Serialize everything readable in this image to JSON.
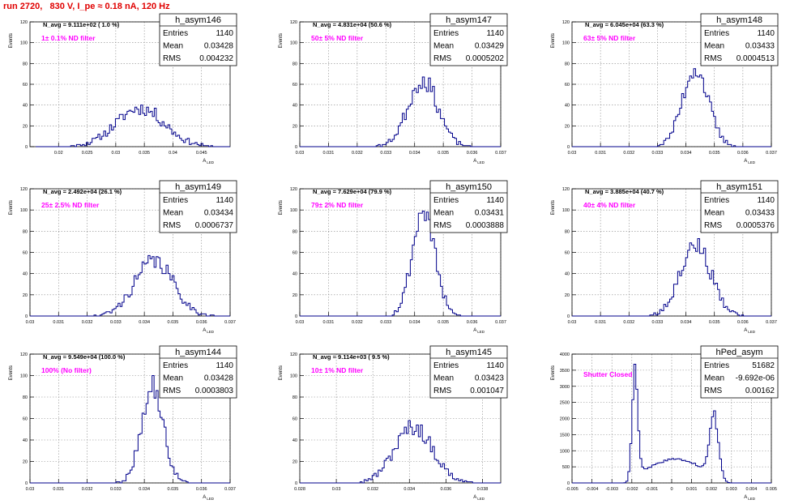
{
  "page_title": "run 2720,   830 V, I_pe ≈ 0.18 nA, 120 Hz",
  "colors": {
    "hist": "#00008b",
    "title": "#e00000",
    "filter_label": "#ff00ff"
  },
  "stat_labels": {
    "entries": "Entries",
    "mean": "Mean",
    "rms": "RMS"
  },
  "chart_data": [
    {
      "type": "histogram",
      "name": "h_asym146",
      "ylabel": "Events",
      "xlabel": "A_LED",
      "xlim": [
        0.015,
        0.05
      ],
      "ylim": [
        0,
        120
      ],
      "xticks": [
        "0.02",
        "0.025",
        "0.03",
        "0.035",
        "0.04",
        "0.045"
      ],
      "xtick_values": [
        0.02,
        0.025,
        0.03,
        0.035,
        0.04,
        0.045
      ],
      "yticks": [
        0,
        20,
        40,
        60,
        80,
        100,
        120
      ],
      "stats": {
        "entries": "1140",
        "mean": "0.03428",
        "rms": "0.004232"
      },
      "n_avg": "N_avg = 9.111e+02 ( 1.0 %)",
      "filter": "1± 0.1% ND filter",
      "dist": {
        "type": "gauss",
        "mean": 0.03428,
        "sigma": 0.004232,
        "range": [
          0.016,
          0.05
        ],
        "peak": 37,
        "seed": 11
      },
      "grid": true
    },
    {
      "type": "histogram",
      "name": "h_asym147",
      "ylabel": "Events",
      "xlabel": "A_LED",
      "xlim": [
        0.03,
        0.037
      ],
      "ylim": [
        0,
        120
      ],
      "xticks": [
        "0.03",
        "0.031",
        "0.032",
        "0.033",
        "0.034",
        "0.035",
        "0.036",
        "0.037"
      ],
      "xtick_values": [
        0.03,
        0.031,
        0.032,
        0.033,
        0.034,
        0.035,
        0.036,
        0.037
      ],
      "yticks": [
        0,
        20,
        40,
        60,
        80,
        100,
        120
      ],
      "stats": {
        "entries": "1140",
        "mean": "0.03429",
        "rms": "0.0005202"
      },
      "n_avg": "N_avg = 4.831e+04 (50.6 %)",
      "filter": "50± 5% ND filter",
      "dist": {
        "type": "gauss",
        "mean": 0.03429,
        "sigma": 0.0005202,
        "range": [
          0.03,
          0.037
        ],
        "peak": 64,
        "seed": 23
      },
      "grid": true
    },
    {
      "type": "histogram",
      "name": "h_asym148",
      "ylabel": "Events",
      "xlabel": "A_LED",
      "xlim": [
        0.03,
        0.037
      ],
      "ylim": [
        0,
        120
      ],
      "xticks": [
        "0.03",
        "0.031",
        "0.032",
        "0.033",
        "0.034",
        "0.035",
        "0.036",
        "0.037"
      ],
      "xtick_values": [
        0.03,
        0.031,
        0.032,
        0.033,
        0.034,
        0.035,
        0.036,
        0.037
      ],
      "yticks": [
        0,
        20,
        40,
        60,
        80,
        100,
        120
      ],
      "stats": {
        "entries": "1140",
        "mean": "0.03433",
        "rms": "0.0004513"
      },
      "n_avg": "N_avg = 6.045e+04 (63.3 %)",
      "filter": "63± 5% ND filter",
      "dist": {
        "type": "gauss",
        "mean": 0.03433,
        "sigma": 0.0004513,
        "range": [
          0.03,
          0.037
        ],
        "peak": 75,
        "seed": 37
      },
      "grid": true
    },
    {
      "type": "histogram",
      "name": "h_asym149",
      "ylabel": "Events",
      "xlabel": "A_LED",
      "xlim": [
        0.03,
        0.037
      ],
      "ylim": [
        0,
        120
      ],
      "xticks": [
        "0.03",
        "0.031",
        "0.032",
        "0.033",
        "0.034",
        "0.035",
        "0.036",
        "0.037"
      ],
      "xtick_values": [
        0.03,
        0.031,
        0.032,
        0.033,
        0.034,
        0.035,
        0.036,
        0.037
      ],
      "yticks": [
        0,
        20,
        40,
        60,
        80,
        100,
        120
      ],
      "stats": {
        "entries": "1140",
        "mean": "0.03434",
        "rms": "0.0006737"
      },
      "n_avg": "N_avg = 2.492e+04 (26.1 %)",
      "filter": "25± 2.5% ND filter",
      "dist": {
        "type": "gauss",
        "mean": 0.03434,
        "sigma": 0.0006737,
        "range": [
          0.03,
          0.037
        ],
        "peak": 52,
        "seed": 41
      },
      "grid": true
    },
    {
      "type": "histogram",
      "name": "h_asym150",
      "ylabel": "Events",
      "xlabel": "A_LED",
      "xlim": [
        0.03,
        0.037
      ],
      "ylim": [
        0,
        120
      ],
      "xticks": [
        "0.03",
        "0.031",
        "0.032",
        "0.033",
        "0.034",
        "0.035",
        "0.036",
        "0.037"
      ],
      "xtick_values": [
        0.03,
        0.031,
        0.032,
        0.033,
        0.034,
        0.035,
        0.036,
        0.037
      ],
      "yticks": [
        0,
        20,
        40,
        60,
        80,
        100,
        120
      ],
      "stats": {
        "entries": "1140",
        "mean": "0.03431",
        "rms": "0.0003888"
      },
      "n_avg": "N_avg = 7.629e+04 (79.9 %)",
      "filter": "79± 2% ND filter",
      "dist": {
        "type": "gauss",
        "mean": 0.03431,
        "sigma": 0.0003888,
        "range": [
          0.03,
          0.037
        ],
        "peak": 100,
        "seed": 53
      },
      "grid": true
    },
    {
      "type": "histogram",
      "name": "h_asym151",
      "ylabel": "Events",
      "xlabel": "A_LED",
      "xlim": [
        0.03,
        0.037
      ],
      "ylim": [
        0,
        120
      ],
      "xticks": [
        "0.03",
        "0.031",
        "0.032",
        "0.033",
        "0.034",
        "0.035",
        "0.036",
        "0.037"
      ],
      "xtick_values": [
        0.03,
        0.031,
        0.032,
        0.033,
        0.034,
        0.035,
        0.036,
        0.037
      ],
      "yticks": [
        0,
        20,
        40,
        60,
        80,
        100,
        120
      ],
      "stats": {
        "entries": "1140",
        "mean": "0.03433",
        "rms": "0.0005376"
      },
      "n_avg": "N_avg = 3.885e+04 (40.7 %)",
      "filter": "40± 4% ND filter",
      "dist": {
        "type": "gauss",
        "mean": 0.03433,
        "sigma": 0.0005376,
        "range": [
          0.03,
          0.037
        ],
        "peak": 68,
        "seed": 67
      },
      "grid": true
    },
    {
      "type": "histogram",
      "name": "h_asym144",
      "ylabel": "Events",
      "xlabel": "A_LED",
      "xlim": [
        0.03,
        0.037
      ],
      "ylim": [
        0,
        120
      ],
      "xticks": [
        "0.03",
        "0.031",
        "0.032",
        "0.033",
        "0.034",
        "0.035",
        "0.036",
        "0.037"
      ],
      "xtick_values": [
        0.03,
        0.031,
        0.032,
        0.033,
        0.034,
        0.035,
        0.036,
        0.037
      ],
      "yticks": [
        0,
        20,
        40,
        60,
        80,
        100,
        120
      ],
      "stats": {
        "entries": "1140",
        "mean": "0.03428",
        "rms": "0.0003803"
      },
      "n_avg": "N_avg = 9.549e+04 (100.0 %)",
      "filter": "100% (No filter)",
      "dist": {
        "type": "gauss",
        "mean": 0.03428,
        "sigma": 0.0003803,
        "range": [
          0.03,
          0.037
        ],
        "peak": 90,
        "seed": 79
      },
      "grid": true
    },
    {
      "type": "histogram",
      "name": "h_asym145",
      "ylabel": "Events",
      "xlabel": "A_LED",
      "xlim": [
        0.028,
        0.039
      ],
      "ylim": [
        0,
        120
      ],
      "xticks": [
        "0.028",
        "0.03",
        "0.032",
        "0.034",
        "0.036",
        "0.038"
      ],
      "xtick_values": [
        0.028,
        0.03,
        0.032,
        0.034,
        0.036,
        0.038
      ],
      "yticks": [
        0,
        20,
        40,
        60,
        80,
        100,
        120
      ],
      "stats": {
        "entries": "1140",
        "mean": "0.03423",
        "rms": "0.001047"
      },
      "n_avg": "N_avg = 9.114e+03 ( 9.5 %)",
      "filter": "10± 1% ND filter",
      "dist": {
        "type": "gauss",
        "mean": 0.03423,
        "sigma": 0.001047,
        "range": [
          0.028,
          0.039
        ],
        "peak": 52,
        "seed": 97
      },
      "grid": true
    },
    {
      "type": "histogram",
      "name": "hPed_asym",
      "ylabel": "Events",
      "xlabel": "A_LED",
      "xlim": [
        -0.005,
        0.005
      ],
      "ylim": [
        0,
        4000
      ],
      "xticks": [
        "-0.005",
        "-0.004",
        "-0.003",
        "-0.002",
        "-0.001",
        "0",
        "0.001",
        "0.002",
        "0.003",
        "0.004",
        "0.005"
      ],
      "xtick_values": [
        -0.005,
        -0.004,
        -0.003,
        -0.002,
        -0.001,
        0,
        0.001,
        0.002,
        0.003,
        0.004,
        0.005
      ],
      "yticks": [
        0,
        500,
        1000,
        1500,
        2000,
        2500,
        3000,
        3500,
        4000
      ],
      "stats": {
        "entries": "51682",
        "mean": "-9.692e-06",
        "rms": "0.00162"
      },
      "n_avg": "",
      "filter": "Shutter Closed",
      "dist": {
        "type": "ped",
        "range": [
          -0.005,
          0.005
        ],
        "seed": 113
      },
      "grid": true
    }
  ]
}
